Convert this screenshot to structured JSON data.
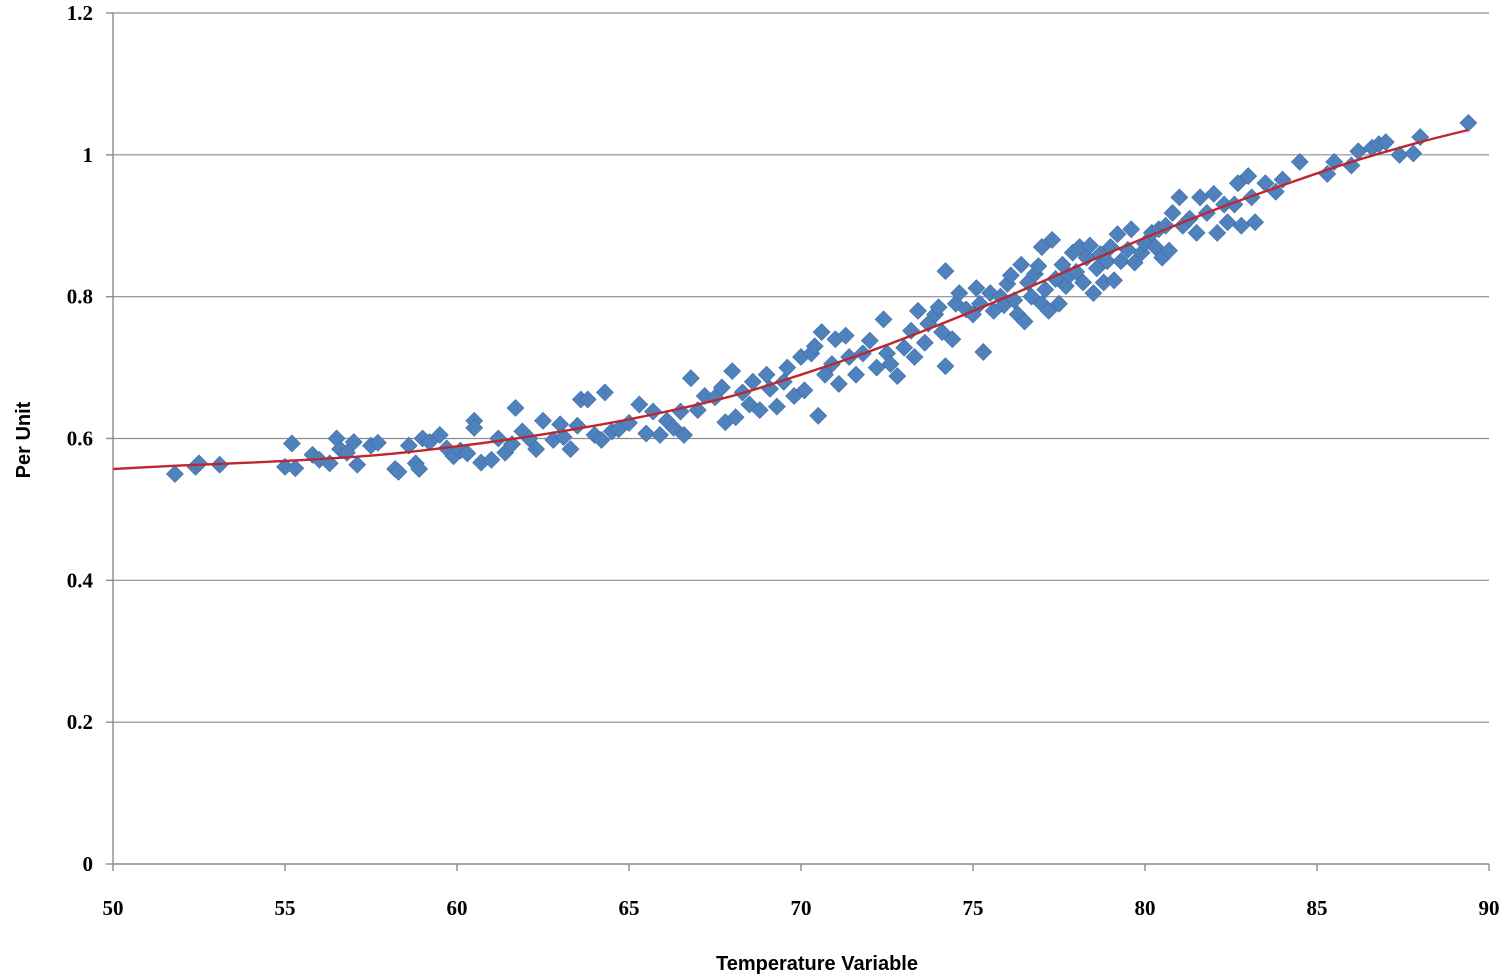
{
  "chart_data": {
    "type": "scatter",
    "xlabel": "Temperature Variable",
    "ylabel": "Per Unit",
    "xlim": [
      50,
      90
    ],
    "ylim": [
      0,
      1.2
    ],
    "x_ticks": [
      "50",
      "55",
      "60",
      "65",
      "70",
      "75",
      "80",
      "85",
      "90"
    ],
    "y_ticks": [
      "0",
      "0.2",
      "0.4",
      "0.6",
      "0.8",
      "1",
      "1.2"
    ],
    "grid": "horizontal",
    "legend": "none",
    "colors": {
      "points": "#4f81bd",
      "trendline": "#c0272d"
    },
    "marker": "diamond",
    "series": [
      {
        "values": [
          [
            51.8,
            0.55
          ],
          [
            52.4,
            0.56
          ],
          [
            52.5,
            0.565
          ],
          [
            53.1,
            0.563
          ],
          [
            55.0,
            0.56
          ],
          [
            55.2,
            0.593
          ],
          [
            55.3,
            0.558
          ],
          [
            55.8,
            0.577
          ],
          [
            56.0,
            0.57
          ],
          [
            56.3,
            0.565
          ],
          [
            56.5,
            0.6
          ],
          [
            56.6,
            0.585
          ],
          [
            56.8,
            0.58
          ],
          [
            57.0,
            0.595
          ],
          [
            57.1,
            0.563
          ],
          [
            57.5,
            0.59
          ],
          [
            57.7,
            0.594
          ],
          [
            58.2,
            0.557
          ],
          [
            58.3,
            0.553
          ],
          [
            58.6,
            0.59
          ],
          [
            58.8,
            0.565
          ],
          [
            58.9,
            0.557
          ],
          [
            59.0,
            0.6
          ],
          [
            59.2,
            0.595
          ],
          [
            59.5,
            0.605
          ],
          [
            59.7,
            0.586
          ],
          [
            59.9,
            0.575
          ],
          [
            60.1,
            0.583
          ],
          [
            60.3,
            0.579
          ],
          [
            60.5,
            0.625
          ],
          [
            60.5,
            0.615
          ],
          [
            60.7,
            0.566
          ],
          [
            61.0,
            0.57
          ],
          [
            61.2,
            0.6
          ],
          [
            61.4,
            0.58
          ],
          [
            61.6,
            0.592
          ],
          [
            61.7,
            0.643
          ],
          [
            61.9,
            0.61
          ],
          [
            62.1,
            0.6
          ],
          [
            62.3,
            0.585
          ],
          [
            62.5,
            0.625
          ],
          [
            62.8,
            0.598
          ],
          [
            63.0,
            0.62
          ],
          [
            63.1,
            0.602
          ],
          [
            63.3,
            0.585
          ],
          [
            63.5,
            0.618
          ],
          [
            63.6,
            0.655
          ],
          [
            63.8,
            0.655
          ],
          [
            64.0,
            0.605
          ],
          [
            64.2,
            0.598
          ],
          [
            64.3,
            0.665
          ],
          [
            64.5,
            0.61
          ],
          [
            64.7,
            0.613
          ],
          [
            65.0,
            0.622
          ],
          [
            65.3,
            0.648
          ],
          [
            65.5,
            0.607
          ],
          [
            65.7,
            0.638
          ],
          [
            65.9,
            0.605
          ],
          [
            66.1,
            0.625
          ],
          [
            66.3,
            0.615
          ],
          [
            66.5,
            0.638
          ],
          [
            66.6,
            0.605
          ],
          [
            66.8,
            0.685
          ],
          [
            67.0,
            0.64
          ],
          [
            67.2,
            0.66
          ],
          [
            67.5,
            0.658
          ],
          [
            67.7,
            0.672
          ],
          [
            67.8,
            0.623
          ],
          [
            68.0,
            0.695
          ],
          [
            68.1,
            0.63
          ],
          [
            68.3,
            0.665
          ],
          [
            68.5,
            0.648
          ],
          [
            68.6,
            0.68
          ],
          [
            68.8,
            0.64
          ],
          [
            69.0,
            0.69
          ],
          [
            69.1,
            0.67
          ],
          [
            69.3,
            0.645
          ],
          [
            69.5,
            0.68
          ],
          [
            69.6,
            0.7
          ],
          [
            69.8,
            0.66
          ],
          [
            70.0,
            0.715
          ],
          [
            70.1,
            0.668
          ],
          [
            70.3,
            0.72
          ],
          [
            70.4,
            0.73
          ],
          [
            70.5,
            0.632
          ],
          [
            70.6,
            0.75
          ],
          [
            70.7,
            0.69
          ],
          [
            70.9,
            0.705
          ],
          [
            71.0,
            0.74
          ],
          [
            71.1,
            0.677
          ],
          [
            71.3,
            0.745
          ],
          [
            71.4,
            0.715
          ],
          [
            71.6,
            0.69
          ],
          [
            71.8,
            0.72
          ],
          [
            72.0,
            0.738
          ],
          [
            72.2,
            0.7
          ],
          [
            72.4,
            0.768
          ],
          [
            72.5,
            0.72
          ],
          [
            72.6,
            0.705
          ],
          [
            72.8,
            0.688
          ],
          [
            73.0,
            0.728
          ],
          [
            73.2,
            0.752
          ],
          [
            73.3,
            0.715
          ],
          [
            73.4,
            0.78
          ],
          [
            73.6,
            0.735
          ],
          [
            73.7,
            0.762
          ],
          [
            73.9,
            0.775
          ],
          [
            74.0,
            0.785
          ],
          [
            74.1,
            0.75
          ],
          [
            74.2,
            0.702
          ],
          [
            74.2,
            0.836
          ],
          [
            74.4,
            0.74
          ],
          [
            74.5,
            0.79
          ],
          [
            74.6,
            0.805
          ],
          [
            74.8,
            0.782
          ],
          [
            75.0,
            0.775
          ],
          [
            75.1,
            0.812
          ],
          [
            75.2,
            0.79
          ],
          [
            75.3,
            0.722
          ],
          [
            75.5,
            0.805
          ],
          [
            75.6,
            0.78
          ],
          [
            75.8,
            0.8
          ],
          [
            75.9,
            0.788
          ],
          [
            76.0,
            0.818
          ],
          [
            76.1,
            0.83
          ],
          [
            76.2,
            0.795
          ],
          [
            76.3,
            0.775
          ],
          [
            76.4,
            0.845
          ],
          [
            76.5,
            0.765
          ],
          [
            76.6,
            0.82
          ],
          [
            76.7,
            0.8
          ],
          [
            76.8,
            0.832
          ],
          [
            76.9,
            0.843
          ],
          [
            77.0,
            0.79
          ],
          [
            77.0,
            0.87
          ],
          [
            77.1,
            0.81
          ],
          [
            77.2,
            0.78
          ],
          [
            77.3,
            0.88
          ],
          [
            77.4,
            0.825
          ],
          [
            77.5,
            0.79
          ],
          [
            77.6,
            0.845
          ],
          [
            77.7,
            0.815
          ],
          [
            77.8,
            0.83
          ],
          [
            77.9,
            0.862
          ],
          [
            78.0,
            0.835
          ],
          [
            78.1,
            0.87
          ],
          [
            78.2,
            0.82
          ],
          [
            78.3,
            0.855
          ],
          [
            78.4,
            0.872
          ],
          [
            78.5,
            0.805
          ],
          [
            78.6,
            0.84
          ],
          [
            78.7,
            0.86
          ],
          [
            78.8,
            0.82
          ],
          [
            78.9,
            0.85
          ],
          [
            79.0,
            0.87
          ],
          [
            79.1,
            0.823
          ],
          [
            79.2,
            0.888
          ],
          [
            79.3,
            0.85
          ],
          [
            79.5,
            0.866
          ],
          [
            79.6,
            0.895
          ],
          [
            79.7,
            0.848
          ],
          [
            79.9,
            0.862
          ],
          [
            80.0,
            0.875
          ],
          [
            80.2,
            0.89
          ],
          [
            80.3,
            0.87
          ],
          [
            80.4,
            0.895
          ],
          [
            80.5,
            0.855
          ],
          [
            80.6,
            0.9
          ],
          [
            80.7,
            0.865
          ],
          [
            80.8,
            0.918
          ],
          [
            81.0,
            0.94
          ],
          [
            81.1,
            0.9
          ],
          [
            81.3,
            0.91
          ],
          [
            81.5,
            0.89
          ],
          [
            81.6,
            0.94
          ],
          [
            81.8,
            0.918
          ],
          [
            82.0,
            0.945
          ],
          [
            82.1,
            0.89
          ],
          [
            82.3,
            0.93
          ],
          [
            82.4,
            0.905
          ],
          [
            82.6,
            0.93
          ],
          [
            82.7,
            0.96
          ],
          [
            82.8,
            0.9
          ],
          [
            83.0,
            0.97
          ],
          [
            83.1,
            0.94
          ],
          [
            83.2,
            0.905
          ],
          [
            83.5,
            0.96
          ],
          [
            83.8,
            0.948
          ],
          [
            84.0,
            0.965
          ],
          [
            84.5,
            0.99
          ],
          [
            85.3,
            0.973
          ],
          [
            85.5,
            0.99
          ],
          [
            86.0,
            0.985
          ],
          [
            86.2,
            1.005
          ],
          [
            86.6,
            1.01
          ],
          [
            86.8,
            1.015
          ],
          [
            87.0,
            1.018
          ],
          [
            87.4,
            1.0
          ],
          [
            87.8,
            1.002
          ],
          [
            88.0,
            1.025
          ],
          [
            89.4,
            1.045
          ]
        ]
      }
    ],
    "trendline": {
      "x": [
        50,
        52,
        54,
        56,
        58,
        60,
        62,
        64,
        66,
        68,
        70,
        72,
        74,
        76,
        78,
        80,
        82,
        84,
        86,
        88,
        89.4
      ],
      "y": [
        0.557,
        0.562,
        0.566,
        0.571,
        0.578,
        0.589,
        0.602,
        0.618,
        0.637,
        0.66,
        0.69,
        0.723,
        0.76,
        0.8,
        0.842,
        0.883,
        0.922,
        0.957,
        0.99,
        1.018,
        1.035
      ]
    }
  }
}
